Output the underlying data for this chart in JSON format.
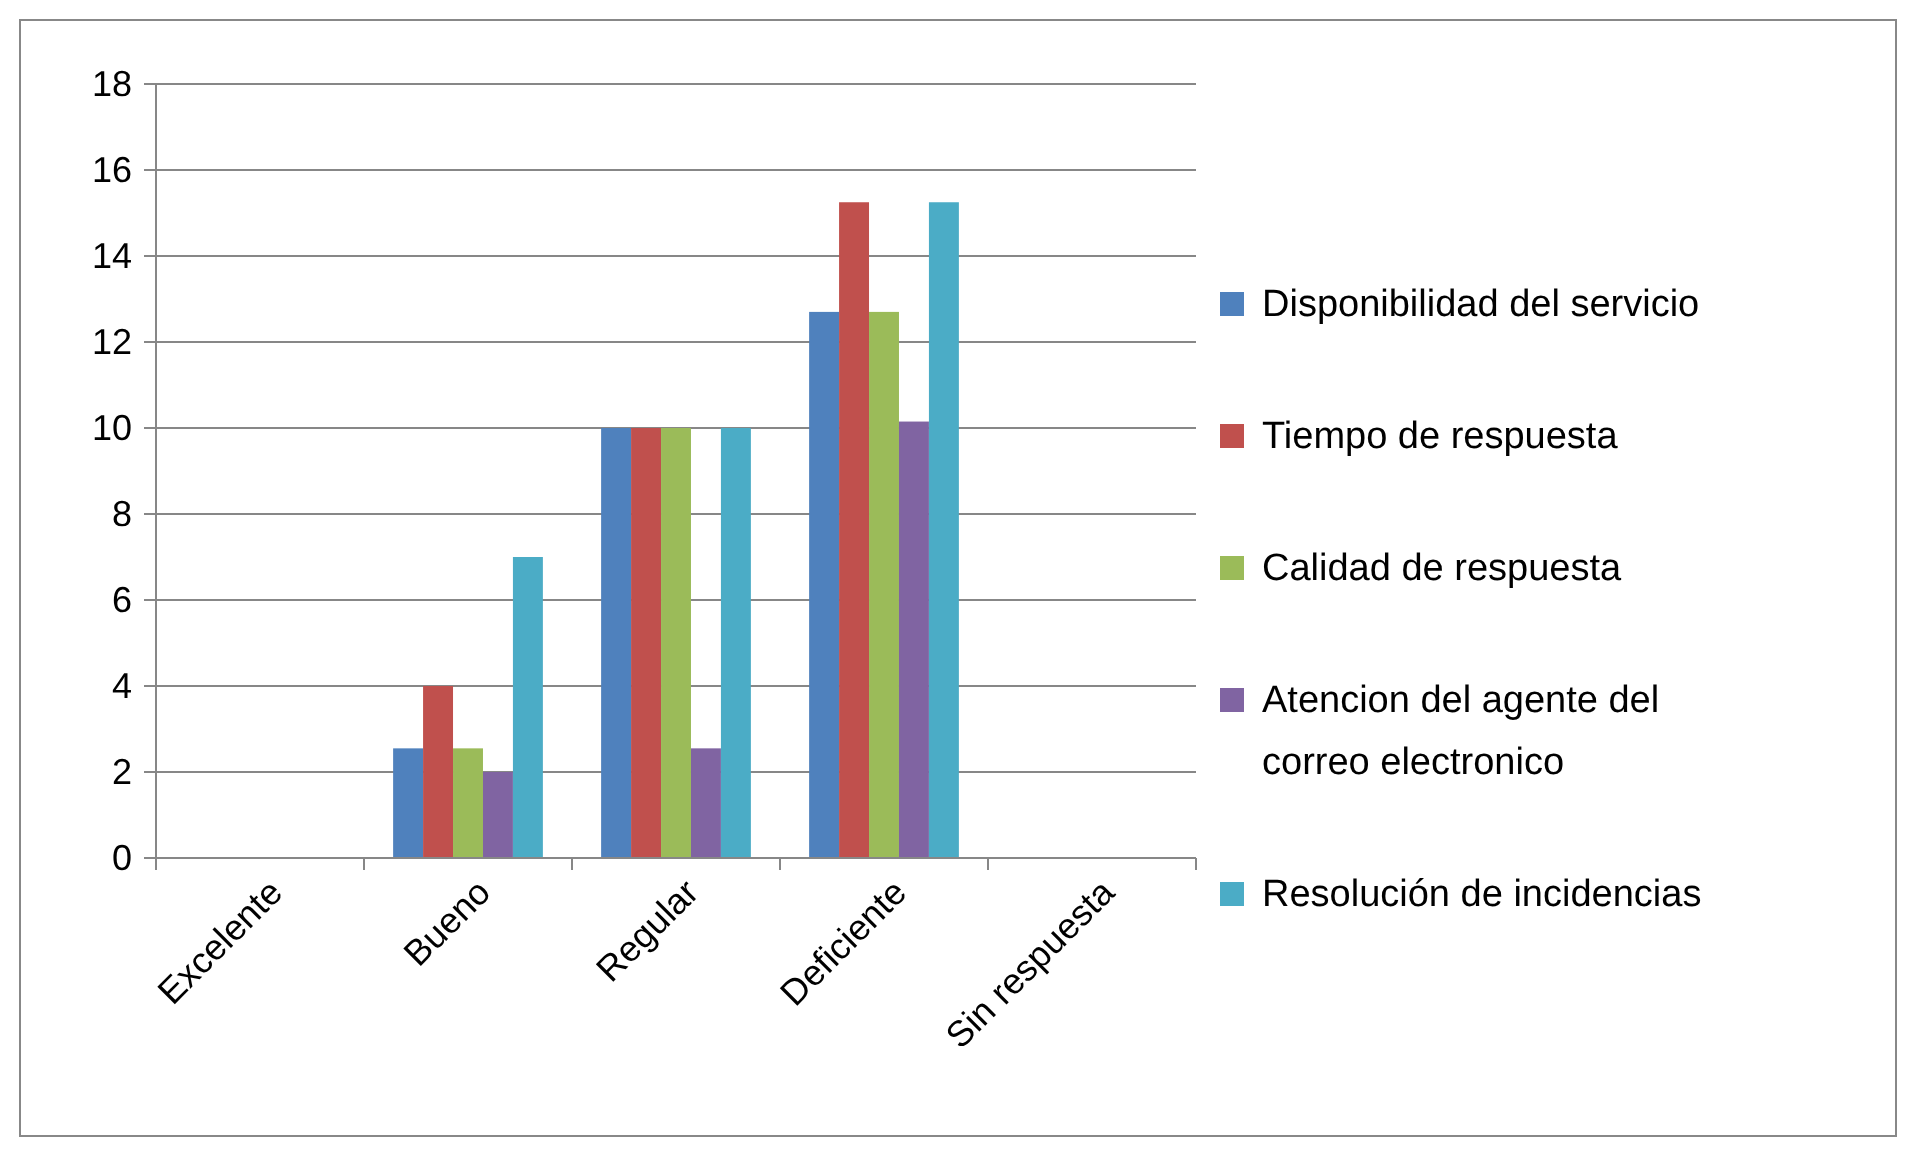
{
  "chart_data": {
    "type": "bar",
    "categories": [
      "Excelente",
      "Bueno",
      "Regular",
      "Deficiente",
      "Sin respuesta"
    ],
    "series": [
      {
        "name": "Disponibilidad del servicio",
        "color": "#4f81bd",
        "values": [
          0,
          2.55,
          10,
          12.7,
          0
        ]
      },
      {
        "name": "Tiempo de respuesta",
        "color": "#c0504d",
        "values": [
          0,
          4,
          10,
          15.25,
          0
        ]
      },
      {
        "name": "Calidad de respuesta",
        "color": "#9bbb59",
        "values": [
          0,
          2.55,
          10,
          12.7,
          0
        ]
      },
      {
        "name": "Atencion del agente del correo electronico",
        "color": "#8064a2",
        "values": [
          0,
          2,
          2.55,
          10.15,
          0
        ]
      },
      {
        "name": "Resolución de incidencias",
        "color": "#4bacc6",
        "values": [
          0,
          7,
          10,
          15.25,
          0
        ]
      }
    ],
    "ylim": [
      0,
      18
    ],
    "yticks": [
      0,
      2,
      4,
      6,
      8,
      10,
      12,
      14,
      16,
      18
    ],
    "grid": "y",
    "legend": "right"
  }
}
